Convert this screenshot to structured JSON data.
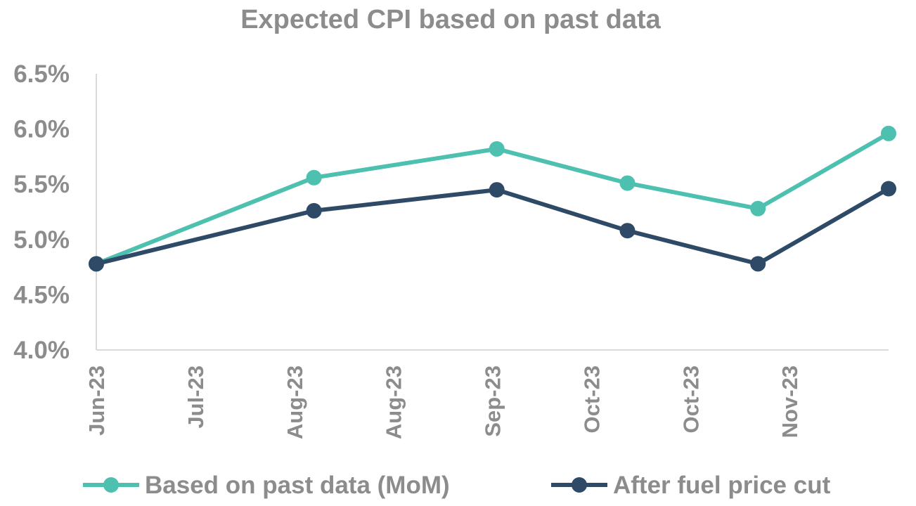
{
  "chart_data": {
    "type": "line",
    "title": "Expected CPI based on past data",
    "xlabel": "",
    "ylabel": "",
    "x_tick_labels": [
      "Jun-23",
      "Jul-23",
      "Aug-23",
      "Aug-23",
      "Sep-23",
      "Oct-23",
      "Oct-23",
      "Nov-23"
    ],
    "y_tick_labels": [
      "4.0%",
      "4.5%",
      "5.0%",
      "5.5%",
      "6.0%",
      "6.5%"
    ],
    "ylim": [
      4.0,
      6.5
    ],
    "x_dates": [
      "2023-06-01",
      "2023-07-21",
      "2023-09-01",
      "2023-10-01",
      "2023-10-31",
      "2023-11-30"
    ],
    "series": [
      {
        "name": "Based on past data (MoM)",
        "color": "#4dc0b0",
        "values": [
          4.78,
          5.56,
          5.82,
          5.51,
          5.28,
          5.96
        ]
      },
      {
        "name": "After fuel price cut",
        "color": "#2e4a66",
        "values": [
          4.78,
          5.26,
          5.45,
          5.08,
          4.78,
          5.46
        ]
      }
    ],
    "grid": false,
    "legend_position": "bottom"
  }
}
